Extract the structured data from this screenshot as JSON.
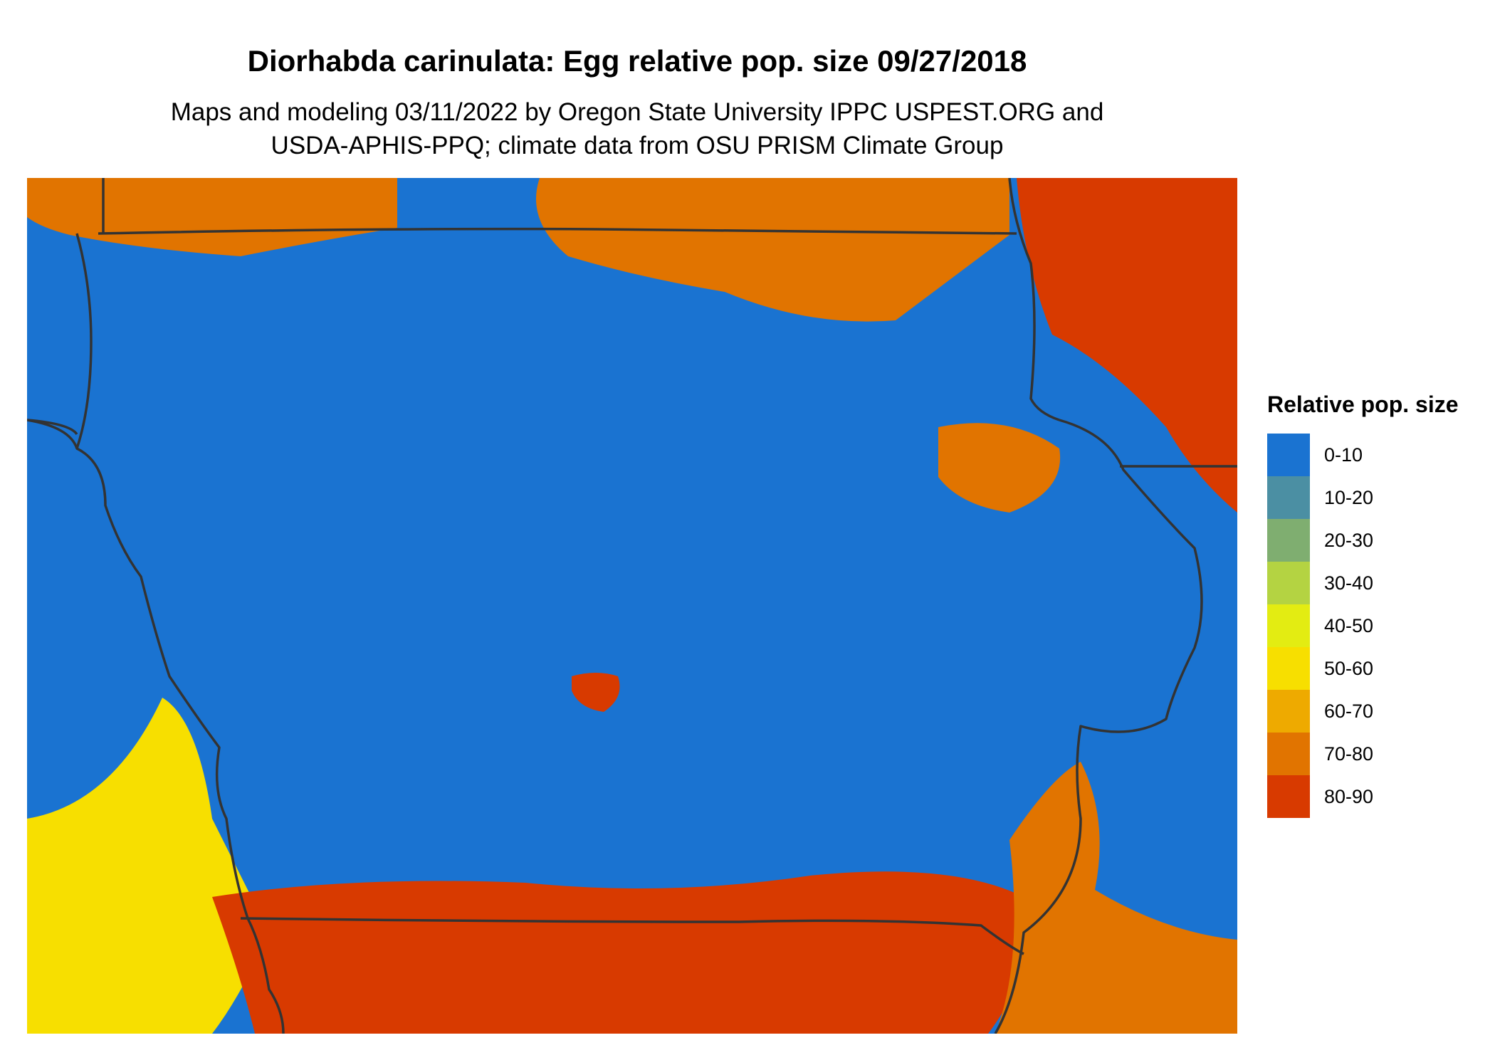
{
  "title": "Diorhabda carinulata: Egg relative pop. size 09/27/2018",
  "subtitle_lines": [
    "Maps and modeling 03/11/2022 by Oregon State University IPPC USPEST.ORG and",
    "USDA-APHIS-PPQ; climate data from OSU PRISM Climate Group"
  ],
  "legend": {
    "title": "Relative pop. size",
    "items": [
      {
        "label": "0-10",
        "color": "#1a73d1"
      },
      {
        "label": "10-20",
        "color": "#4b8fa3"
      },
      {
        "label": "20-30",
        "color": "#7fae70"
      },
      {
        "label": "30-40",
        "color": "#b4d342"
      },
      {
        "label": "40-50",
        "color": "#e3ec12"
      },
      {
        "label": "50-60",
        "color": "#f7df00"
      },
      {
        "label": "60-70",
        "color": "#eeaa00"
      },
      {
        "label": "70-80",
        "color": "#e17400"
      },
      {
        "label": "80-90",
        "color": "#d83a00"
      }
    ]
  },
  "map": {
    "background_class": "0-10",
    "boundary_color": "#333333",
    "regions": [
      {
        "name": "north-left-border-band",
        "class": "70-80"
      },
      {
        "name": "north-center-border-band",
        "class": "70-80"
      },
      {
        "name": "northeast-corner-band",
        "class": "80-90"
      },
      {
        "name": "northeast-interior-patch",
        "class": "70-80"
      },
      {
        "name": "central-hotspot",
        "class": "80-90"
      },
      {
        "name": "southwest-river-band",
        "class": "50-60"
      },
      {
        "name": "southern-border-band",
        "class": "80-90"
      },
      {
        "name": "southeast-band",
        "class": "70-80"
      }
    ]
  }
}
